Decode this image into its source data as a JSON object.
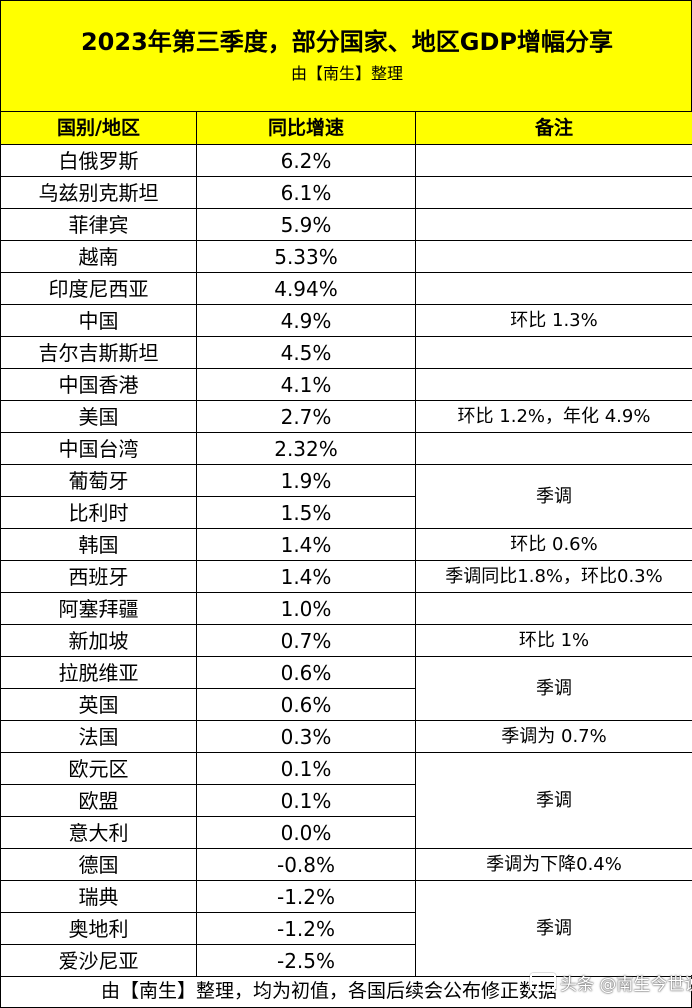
{
  "header": {
    "title": "2023年第三季度，部分国家、地区GDP增幅分享",
    "subtitle": "由【南生】整理"
  },
  "table": {
    "columns": [
      "国别/地区",
      "同比增速",
      "备注"
    ],
    "rows": [
      {
        "region": "白俄罗斯",
        "growth": "6.2%"
      },
      {
        "region": "乌兹别克斯坦",
        "growth": "6.1%"
      },
      {
        "region": "菲律宾",
        "growth": "5.9%"
      },
      {
        "region": "越南",
        "growth": "5.33%"
      },
      {
        "region": "印度尼西亚",
        "growth": "4.94%"
      },
      {
        "region": "中国",
        "growth": "4.9%",
        "note": "环比 1.3%"
      },
      {
        "region": "吉尔吉斯斯坦",
        "growth": "4.5%"
      },
      {
        "region": "中国香港",
        "growth": "4.1%"
      },
      {
        "region": "美国",
        "growth": "2.7%",
        "note": "环比 1.2%，年化 4.9%"
      },
      {
        "region": "中国台湾",
        "growth": "2.32%"
      },
      {
        "region": "葡萄牙",
        "growth": "1.9%",
        "note": "季调"
      },
      {
        "region": "比利时",
        "growth": "1.5%"
      },
      {
        "region": "韩国",
        "growth": "1.4%",
        "note": "环比 0.6%"
      },
      {
        "region": "西班牙",
        "growth": "1.4%",
        "note": "季调同比1.8%，环比0.3%"
      },
      {
        "region": "阿塞拜疆",
        "growth": "1.0%"
      },
      {
        "region": "新加坡",
        "growth": "0.7%",
        "note": "环比 1%"
      },
      {
        "region": "拉脱维亚",
        "growth": "0.6%",
        "note": "季调"
      },
      {
        "region": "英国",
        "growth": "0.6%"
      },
      {
        "region": "法国",
        "growth": "0.3%",
        "note": "季调为 0.7%"
      },
      {
        "region": "欧元区",
        "growth": "0.1%",
        "note": "季调"
      },
      {
        "region": "欧盟",
        "growth": "0.1%"
      },
      {
        "region": "意大利",
        "growth": "0.0%"
      },
      {
        "region": "德国",
        "growth": "-0.8%",
        "note": "季调为下降0.4%"
      },
      {
        "region": "瑞典",
        "growth": "-1.2%",
        "note": "季调"
      },
      {
        "region": "奥地利",
        "growth": "-1.2%"
      },
      {
        "region": "爱沙尼亚",
        "growth": "-2.5%"
      }
    ]
  },
  "footer": {
    "text": "由【南生】整理，均为初值，各国后续会公布修正数据"
  },
  "watermark": {
    "text": "头条 @南生今世说"
  },
  "colors": {
    "header_background": "#ffff00"
  }
}
